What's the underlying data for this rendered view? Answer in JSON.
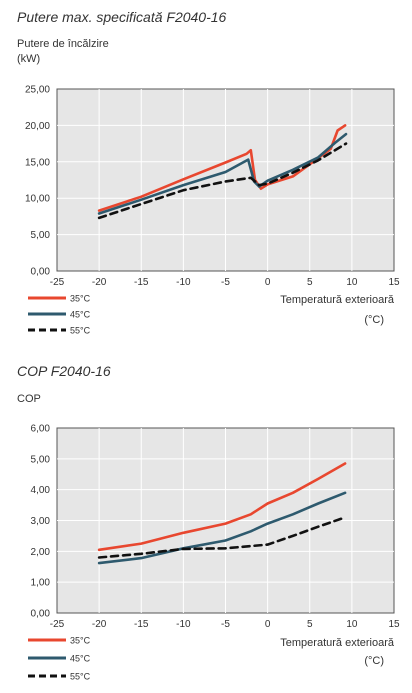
{
  "chart_data": [
    {
      "type": "line",
      "title": "Putere max. specificată F2040-16",
      "ylabel": "Putere de încălzire",
      "yunit": "(kW)",
      "xlabel": "Temperatură exterioară",
      "xunit": "(°C)",
      "xlim": [
        -25,
        15
      ],
      "ylim": [
        0,
        25
      ],
      "xticks": [
        -25,
        -20,
        -15,
        -10,
        -5,
        0,
        5,
        10,
        15
      ],
      "xtick_labels": [
        "-25",
        "-20",
        "-15",
        "-10",
        "-5",
        "0",
        "5",
        "10",
        "15"
      ],
      "yticks": [
        0,
        5,
        10,
        15,
        20,
        25
      ],
      "ytick_labels": [
        "0,00",
        "5,00",
        "10,00",
        "15,00",
        "20,00",
        "25,00"
      ],
      "grid": true,
      "series": [
        {
          "name": "35°C",
          "color": "#e8472f",
          "dash": "solid",
          "points": [
            [
              -20,
              8.3
            ],
            [
              -15,
              10.2
            ],
            [
              -10,
              12.6
            ],
            [
              -5,
              14.9
            ],
            [
              -2.5,
              16.1
            ],
            [
              -2,
              16.6
            ],
            [
              -1.5,
              12.5
            ],
            [
              -0.8,
              11.3
            ],
            [
              0,
              11.9
            ],
            [
              3,
              13.0
            ],
            [
              6,
              15.5
            ],
            [
              7.5,
              16.8
            ],
            [
              8.3,
              19.3
            ],
            [
              9.2,
              20.0
            ]
          ]
        },
        {
          "name": "45°C",
          "color": "#2e5a6e",
          "dash": "solid",
          "points": [
            [
              -20,
              7.9
            ],
            [
              -15,
              9.8
            ],
            [
              -10,
              11.8
            ],
            [
              -5,
              13.6
            ],
            [
              -2.3,
              15.3
            ],
            [
              -1.6,
              12.3
            ],
            [
              -1,
              11.6
            ],
            [
              0,
              12.4
            ],
            [
              3,
              13.9
            ],
            [
              6,
              15.6
            ],
            [
              8,
              17.6
            ],
            [
              9.3,
              18.8
            ]
          ]
        },
        {
          "name": "55°C",
          "color": "#111111",
          "dash": "dashed",
          "points": [
            [
              -20,
              7.3
            ],
            [
              -15,
              9.2
            ],
            [
              -10,
              11.1
            ],
            [
              -5,
              12.3
            ],
            [
              -2,
              12.8
            ],
            [
              -1,
              11.8
            ],
            [
              0,
              12.0
            ],
            [
              3,
              13.5
            ],
            [
              6,
              15.2
            ],
            [
              9.3,
              17.5
            ]
          ]
        }
      ]
    },
    {
      "type": "line",
      "title": "COP F2040-16",
      "ylabel": "COP",
      "xlabel": "Temperatură exterioară",
      "xunit": "(°C)",
      "xlim": [
        -25,
        15
      ],
      "ylim": [
        0,
        6
      ],
      "xticks": [
        -25,
        -20,
        -15,
        -10,
        -5,
        0,
        5,
        10,
        15
      ],
      "xtick_labels": [
        "-25",
        "-20",
        "-15",
        "-10",
        "-5",
        "0",
        "5",
        "10",
        "15"
      ],
      "yticks": [
        0,
        1,
        2,
        3,
        4,
        5,
        6
      ],
      "ytick_labels": [
        "0,00",
        "1,00",
        "2,00",
        "3,00",
        "4,00",
        "5,00",
        "6,00"
      ],
      "grid": true,
      "series": [
        {
          "name": "35°C",
          "color": "#e8472f",
          "dash": "solid",
          "points": [
            [
              -20,
              2.05
            ],
            [
              -15,
              2.25
            ],
            [
              -10,
              2.6
            ],
            [
              -5,
              2.9
            ],
            [
              -2,
              3.2
            ],
            [
              0,
              3.55
            ],
            [
              3,
              3.9
            ],
            [
              6,
              4.35
            ],
            [
              9.2,
              4.85
            ]
          ]
        },
        {
          "name": "45°C",
          "color": "#2e5a6e",
          "dash": "solid",
          "points": [
            [
              -20,
              1.62
            ],
            [
              -15,
              1.78
            ],
            [
              -10,
              2.1
            ],
            [
              -5,
              2.35
            ],
            [
              -2,
              2.65
            ],
            [
              0,
              2.9
            ],
            [
              3,
              3.2
            ],
            [
              6,
              3.55
            ],
            [
              9.2,
              3.9
            ]
          ]
        },
        {
          "name": "55°C",
          "color": "#111111",
          "dash": "dashed",
          "points": [
            [
              -20,
              1.8
            ],
            [
              -15,
              1.92
            ],
            [
              -10,
              2.08
            ],
            [
              -5,
              2.1
            ],
            [
              0,
              2.22
            ],
            [
              3,
              2.5
            ],
            [
              6,
              2.8
            ],
            [
              9.2,
              3.1
            ]
          ]
        }
      ]
    }
  ]
}
